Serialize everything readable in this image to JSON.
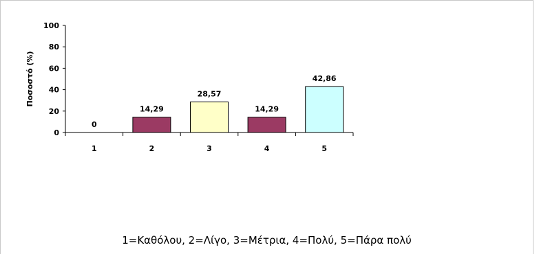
{
  "chart_data": {
    "type": "bar",
    "categories": [
      "1",
      "2",
      "3",
      "4",
      "5"
    ],
    "values": [
      0,
      14.29,
      28.57,
      14.29,
      42.86
    ],
    "value_labels": [
      "0",
      "14,29",
      "28,57",
      "14,29",
      "42,86"
    ],
    "bar_colors": [
      "#9b3a63",
      "#9b3a63",
      "#ffffc8",
      "#9b3a63",
      "#ccffff"
    ],
    "ylabel": "Ποσοστό (%)",
    "ylim": [
      0,
      100
    ],
    "yticks": [
      0,
      20,
      40,
      60,
      80,
      100
    ],
    "grid": false
  },
  "caption": "1=Καθόλου, 2=Λίγο, 3=Μέτρια, 4=Πολύ, 5=Πάρα πολύ"
}
